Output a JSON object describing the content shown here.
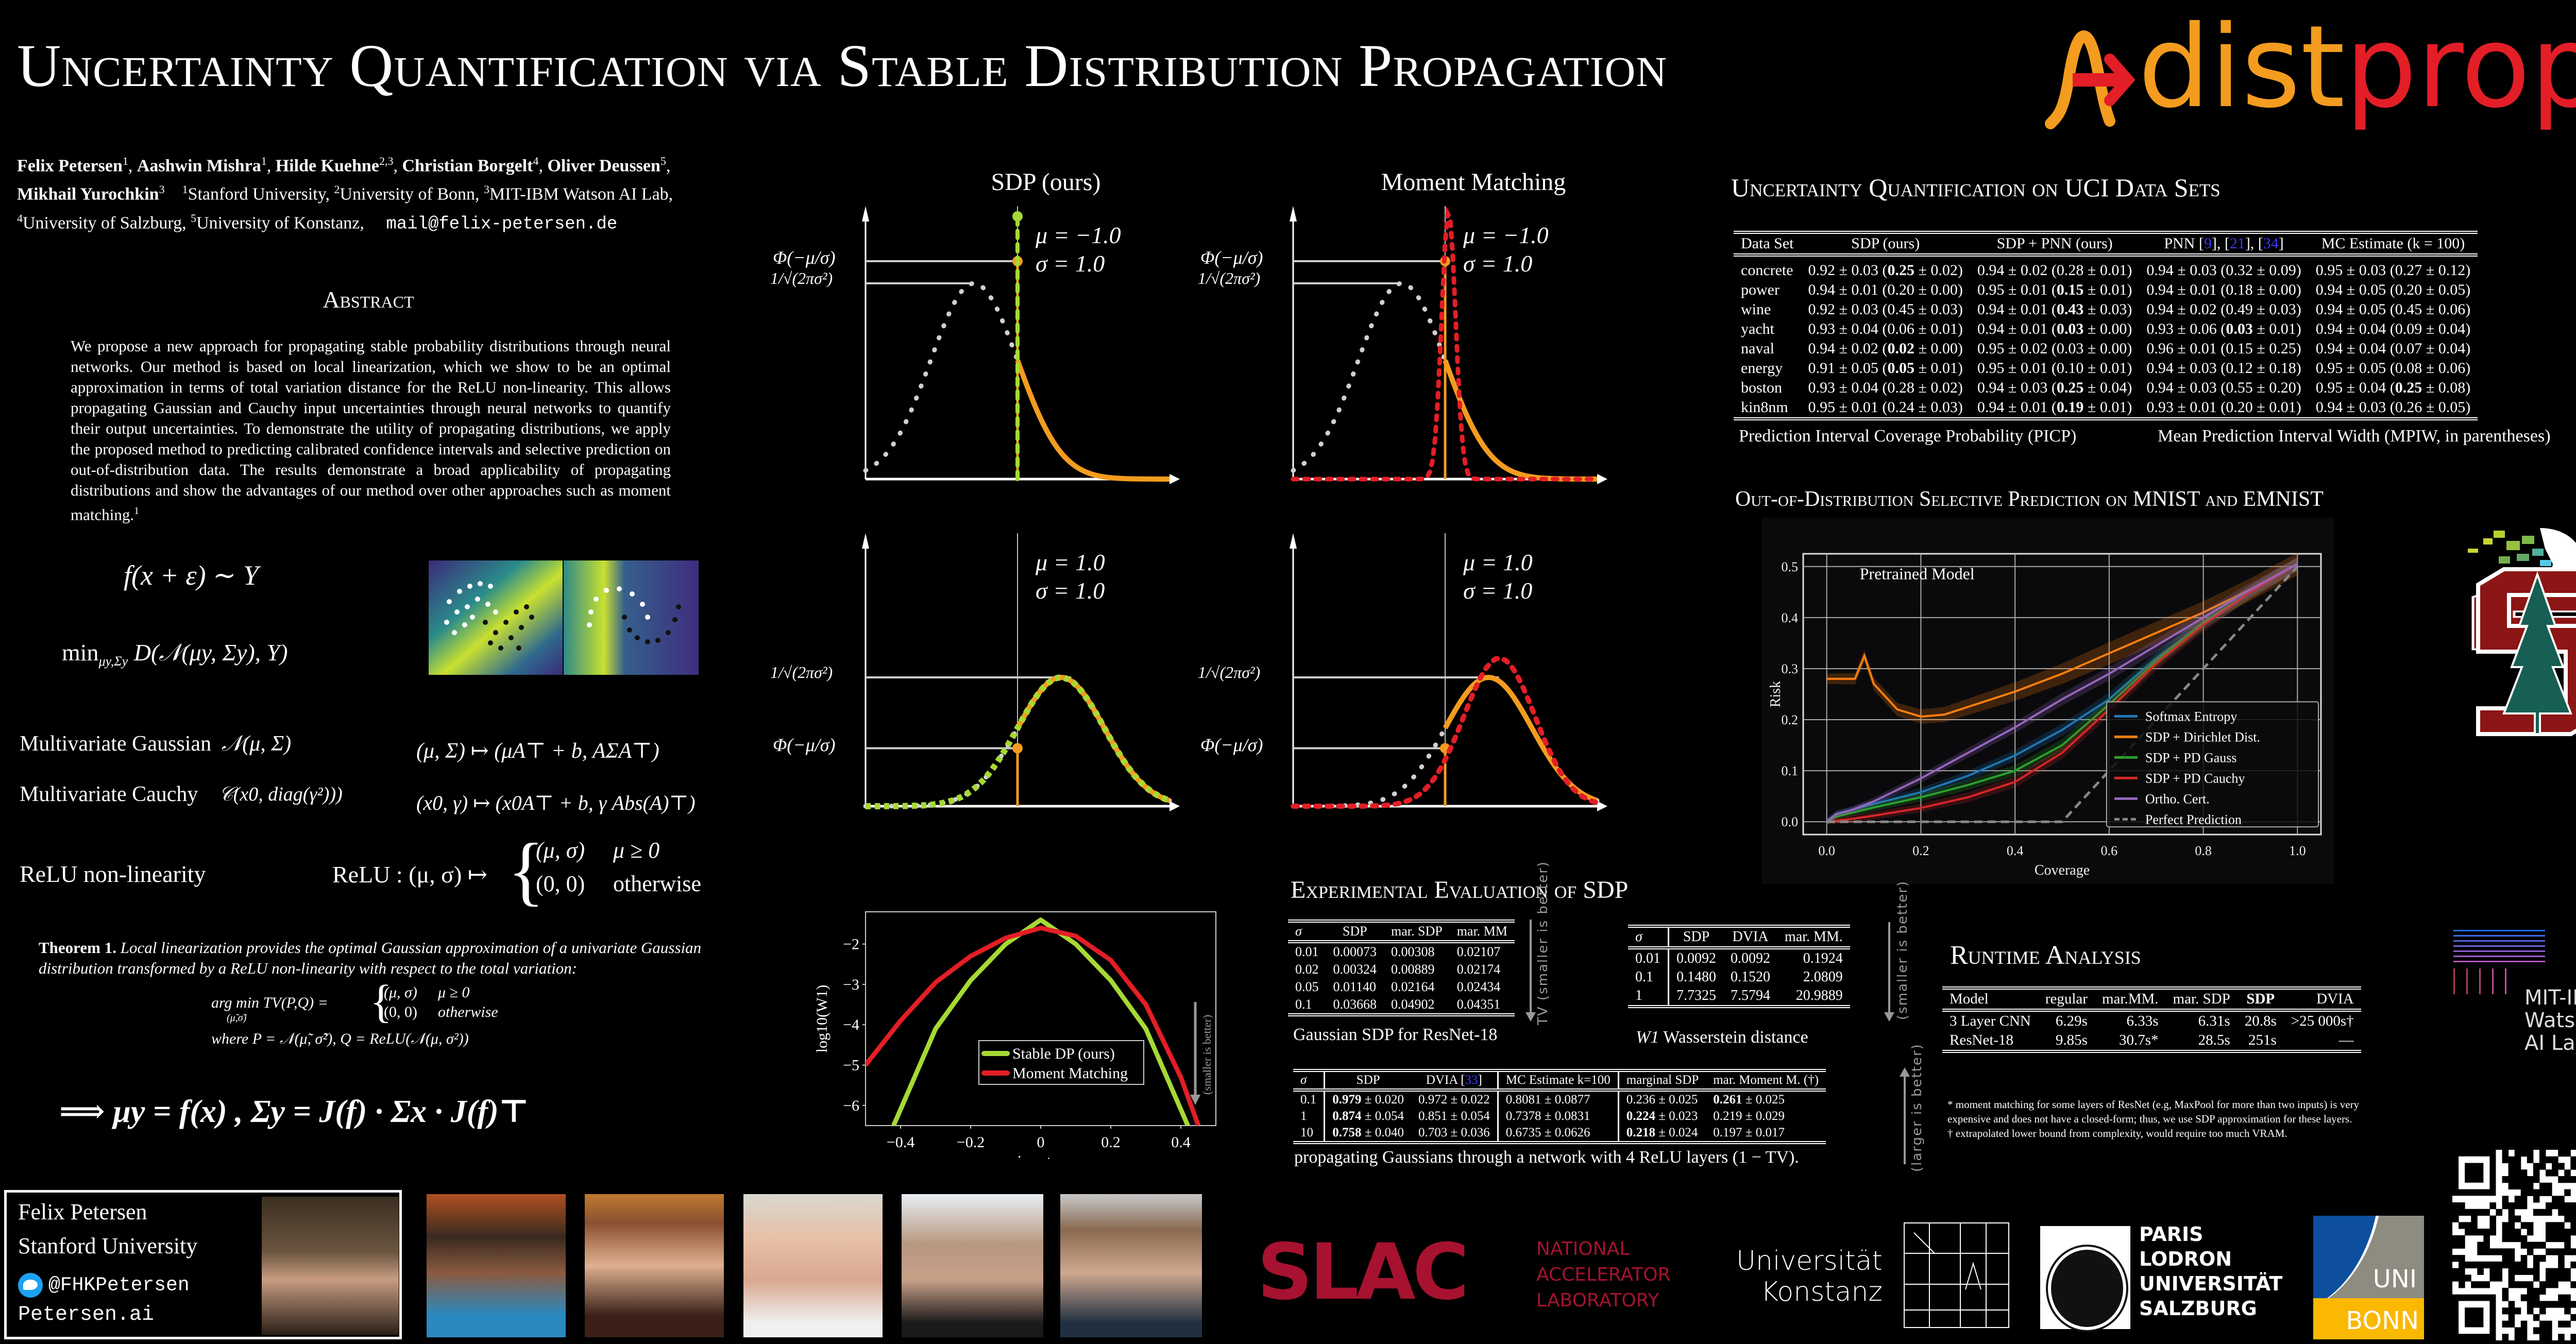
{
  "header": {
    "title": "Uncertainty Quantification via Stable Distribution Propagation",
    "logo_text_a": "dist",
    "logo_text_b": "prop",
    "colors": {
      "orange": "#f39c1f",
      "red": "#e31e26"
    }
  },
  "authors": {
    "line1": [
      {
        "name": "Felix Petersen",
        "sup": "1"
      },
      {
        "name": "Aashwin Mishra",
        "sup": "1"
      },
      {
        "name": "Hilde Kuehne",
        "sup": "2,3"
      },
      {
        "name": "Christian Borgelt",
        "sup": "4"
      },
      {
        "name": "Oliver Deussen",
        "sup": "5"
      }
    ],
    "last_author": {
      "name": "Mikhail Yurochkin",
      "sup": "3"
    },
    "affiliations": [
      {
        "sup": "1",
        "name": "Stanford University,"
      },
      {
        "sup": "2",
        "name": "University of Bonn,"
      },
      {
        "sup": "3",
        "name": "MIT-IBM Watson AI Lab,"
      },
      {
        "sup": "4",
        "name": "University of Salzburg,"
      },
      {
        "sup": "5",
        "name": "University of Konstanz,"
      }
    ],
    "email": "mail@felix-petersen.de"
  },
  "abstract": {
    "heading": "Abstract",
    "text": "We propose a new approach for propagating stable probability distributions through neural networks. Our method is based on local linearization, which we show to be an optimal approximation in terms of total variation distance for the ReLU non-linearity. This allows propagating Gaussian and Cauchy input uncertainties through neural networks to quantify their output uncertainties. To demonstrate the utility of propagating distributions, we apply the proposed method to predicting calibrated confidence intervals and selective prediction on out-of-distribution data. The results demonstrate a broad applicability of propagating distributions and show the advantages of our method over other approaches such as moment matching.",
    "footnote_mark": "1"
  },
  "formulas": {
    "eq1": "f(x + ε) ∼ Y",
    "eq2_min": "min",
    "eq2_sub": "μy,Σy",
    "eq2_rest": "D(𝒩(μy, Σy), Y)",
    "gaussian_label": "Multivariate Gaussian",
    "gaussian_math": "𝒩(μ, Σ)",
    "gaussian_map": "(μ, Σ) ↦ (μA⊤ + b, AΣA⊤)",
    "cauchy_label": "Multivariate Cauchy",
    "cauchy_math": "𝒞(x0, diag(γ²)))",
    "cauchy_map": "(x0, γ) ↦ (x0A⊤ + b, γ Abs(A)⊤)",
    "relu_label": "ReLU non-linearity",
    "relu_map": "ReLU : (μ, σ) ↦",
    "relu_case1": "(μ, σ)",
    "relu_cond1": "μ ≥ 0",
    "relu_case2": "(0, 0)",
    "relu_cond2": "otherwise"
  },
  "theorem": {
    "label": "Theorem 1.",
    "text": "Local linearization provides the optimal Gaussian approximation of a univariate Gaussian distribution transformed by a ReLU non-linearity with respect to the total variation:",
    "argmin": "arg min TV(P,Q) =",
    "argmin_sub": "(μ̃,σ̃)",
    "case1": "(μ, σ)",
    "cond1": "μ ≥ 0",
    "case2": "(0, 0)",
    "cond2": "otherwise",
    "where": "where  P = 𝒩(μ̃, σ̃²),  Q = ReLU(𝒩(μ, σ²))",
    "implication": "⟹  μy = f(x) ,      Σy = J(f) · Σx · J(f)⊤"
  },
  "contact": {
    "name": "Felix Petersen",
    "affiliation": "Stanford University",
    "twitter": "@FHKPetersen",
    "website": "Petersen.ai"
  },
  "illustration": {
    "col_titles": [
      "SDP (ours)",
      "Moment Matching"
    ],
    "phi_label": "Φ(−μ/σ)",
    "peak_label": "1/√(2πσ²)",
    "panels": [
      {
        "mu": "μ = −1.0",
        "sigma": "σ =   1.0"
      },
      {
        "mu": "μ = −1.0",
        "sigma": "σ =   1.0"
      },
      {
        "mu": "μ = 1.0",
        "sigma": "σ = 1.0"
      },
      {
        "mu": "μ = 1.0",
        "sigma": "σ = 1.0"
      }
    ],
    "colors": {
      "input": "#d0d0d0",
      "relu_output": "#f39c1f",
      "sdp": "#a6d934",
      "mm": "#e31e26"
    }
  },
  "chart_data": [
    {
      "type": "line",
      "title": "",
      "xlabel": "input μ",
      "ylabel": "log10(W1)",
      "xlim": [
        -0.5,
        0.5
      ],
      "ylim": [
        -6.5,
        -1.2
      ],
      "xticks": [
        "−0.4",
        "−0.2",
        "0",
        "0.2",
        "0.4"
      ],
      "xtick_values": [
        -0.4,
        -0.2,
        0,
        0.2,
        0.4
      ],
      "yticks": [
        "−2",
        "−3",
        "−4",
        "−5",
        "−6"
      ],
      "ytick_values": [
        -2,
        -3,
        -4,
        -5,
        -6
      ],
      "annotation": "(smaller is better)",
      "legend_position": "center",
      "series": [
        {
          "name": "Stable DP (ours)",
          "color": "#a6d934",
          "x": [
            -0.42,
            -0.3,
            -0.2,
            -0.1,
            0.0,
            0.1,
            0.2,
            0.3,
            0.42
          ],
          "y": [
            -6.5,
            -4.1,
            -2.9,
            -2.0,
            -1.4,
            -2.0,
            -2.9,
            -4.1,
            -6.5
          ]
        },
        {
          "name": "Moment Matching",
          "color": "#e31e26",
          "x": [
            -0.5,
            -0.4,
            -0.3,
            -0.2,
            -0.1,
            0.0,
            0.1,
            0.2,
            0.3,
            0.4,
            0.45
          ],
          "y": [
            -5.0,
            -3.9,
            -2.95,
            -2.3,
            -1.85,
            -1.6,
            -1.8,
            -2.4,
            -3.5,
            -5.3,
            -6.5
          ]
        }
      ]
    },
    {
      "type": "line",
      "title": "Pretrained Model",
      "xlabel": "Coverage",
      "ylabel": "Risk",
      "xlim": [
        -0.05,
        1.05
      ],
      "ylim": [
        -0.025,
        0.525
      ],
      "xticks": [
        "0.0",
        "0.2",
        "0.4",
        "0.6",
        "0.8",
        "1.0"
      ],
      "xtick_values": [
        0,
        0.2,
        0.4,
        0.6,
        0.8,
        1.0
      ],
      "yticks": [
        "0.0",
        "0.1",
        "0.2",
        "0.3",
        "0.4",
        "0.5"
      ],
      "ytick_values": [
        0,
        0.1,
        0.2,
        0.3,
        0.4,
        0.5
      ],
      "grid": true,
      "legend_position": "lower-right",
      "series": [
        {
          "name": "Softmax Entropy",
          "color": "#1f77b4",
          "dash": false,
          "x": [
            0,
            0.02,
            0.1,
            0.2,
            0.3,
            0.4,
            0.5,
            0.6,
            0.7,
            0.8,
            0.9,
            1.0
          ],
          "y": [
            0.0,
            0.015,
            0.035,
            0.058,
            0.09,
            0.13,
            0.18,
            0.24,
            0.32,
            0.39,
            0.45,
            0.505
          ]
        },
        {
          "name": "SDP + Dirichlet Dist.",
          "color": "#ff7f0e",
          "dash": false,
          "x": [
            0,
            0.06,
            0.08,
            0.1,
            0.15,
            0.2,
            0.25,
            0.3,
            0.4,
            0.5,
            0.6,
            0.7,
            0.8,
            0.9,
            1.0
          ],
          "y": [
            0.28,
            0.28,
            0.325,
            0.27,
            0.22,
            0.206,
            0.21,
            0.225,
            0.255,
            0.29,
            0.33,
            0.37,
            0.41,
            0.455,
            0.505
          ]
        },
        {
          "name": "SDP + PD Gauss",
          "color": "#2ca02c",
          "dash": false,
          "x": [
            0,
            0.02,
            0.1,
            0.2,
            0.3,
            0.4,
            0.5,
            0.6,
            0.7,
            0.8,
            0.9,
            1.0
          ],
          "y": [
            0.0,
            0.01,
            0.028,
            0.048,
            0.072,
            0.1,
            0.15,
            0.23,
            0.315,
            0.39,
            0.45,
            0.505
          ]
        },
        {
          "name": "SDP + PD Cauchy",
          "color": "#d62728",
          "dash": false,
          "x": [
            0,
            0.05,
            0.1,
            0.2,
            0.3,
            0.4,
            0.5,
            0.6,
            0.7,
            0.8,
            0.9,
            1.0
          ],
          "y": [
            0.0,
            0.005,
            0.012,
            0.027,
            0.048,
            0.078,
            0.135,
            0.22,
            0.31,
            0.385,
            0.45,
            0.505
          ]
        },
        {
          "name": "Ortho. Cert.",
          "color": "#9467bd",
          "dash": false,
          "x": [
            0,
            0.02,
            0.05,
            0.1,
            0.2,
            0.3,
            0.4,
            0.5,
            0.6,
            0.7,
            0.8,
            0.9,
            1.0
          ],
          "y": [
            0.0,
            0.015,
            0.022,
            0.04,
            0.085,
            0.135,
            0.185,
            0.24,
            0.29,
            0.345,
            0.4,
            0.455,
            0.505
          ]
        },
        {
          "name": "Perfect Prediction",
          "color": "#888888",
          "dash": true,
          "x": [
            0,
            0.5,
            1.0
          ],
          "y": [
            0.0,
            0.0,
            0.5
          ]
        }
      ]
    }
  ],
  "uci": {
    "heading": "Uncertainty Quantification on UCI Data Sets",
    "columns": [
      "Data Set",
      "SDP (ours)",
      "SDP + PNN (ours)",
      "PNN [9], [21], [34]",
      "MC Estimate (k = 100)"
    ],
    "pnn_cites": [
      "9",
      "21",
      "34"
    ],
    "rows": [
      {
        "name": "concrete",
        "cells": [
          [
            "0.92 ± 0.03 (",
            "0.25",
            " ± 0.02)"
          ],
          [
            "0.94 ± 0.02 (0.28 ± 0.01)"
          ],
          [
            "0.94 ± 0.03 (0.32 ± 0.09)"
          ],
          [
            "0.95 ± 0.03 (0.27 ± 0.12)"
          ]
        ]
      },
      {
        "name": "power",
        "cells": [
          [
            "0.94 ± 0.01 (0.20 ± 0.00)"
          ],
          [
            "0.95 ± 0.01 (",
            "0.15",
            " ± 0.01)"
          ],
          [
            "0.94 ± 0.01 (0.18 ± 0.00)"
          ],
          [
            "0.94 ± 0.05 (0.20 ± 0.05)"
          ]
        ]
      },
      {
        "name": "wine",
        "cells": [
          [
            "0.92 ± 0.03 (0.45 ± 0.03)"
          ],
          [
            "0.94 ± 0.01 (",
            "0.43",
            " ± 0.03)"
          ],
          [
            "0.94 ± 0.02 (0.49 ± 0.03)"
          ],
          [
            "0.94 ± 0.05 (0.45 ± 0.06)"
          ]
        ]
      },
      {
        "name": "yacht",
        "cells": [
          [
            "0.93 ± 0.04 (0.06 ± 0.01)"
          ],
          [
            "0.94 ± 0.01 (",
            "0.03",
            " ± 0.00)"
          ],
          [
            "0.93 ± 0.06 (",
            "0.03",
            " ± 0.01)"
          ],
          [
            "0.94 ± 0.04 (0.09 ± 0.04)"
          ]
        ]
      },
      {
        "name": "naval",
        "cells": [
          [
            "0.94 ± 0.02 (",
            "0.02",
            " ± 0.00)"
          ],
          [
            "0.95 ± 0.02 (0.03 ± 0.00)"
          ],
          [
            "0.96 ± 0.01 (0.15 ± 0.25)"
          ],
          [
            "0.94 ± 0.04 (0.07 ± 0.04)"
          ]
        ]
      },
      {
        "name": "energy",
        "cells": [
          [
            "0.91 ± 0.05 (",
            "0.05",
            " ± 0.01)"
          ],
          [
            "0.95 ± 0.01 (0.10 ± 0.01)"
          ],
          [
            "0.94 ± 0.03 (0.12 ± 0.18)"
          ],
          [
            "0.95 ± 0.05 (0.08 ± 0.06)"
          ]
        ]
      },
      {
        "name": "boston",
        "cells": [
          [
            "0.93 ± 0.04 (0.28 ± 0.02)"
          ],
          [
            "0.94 ± 0.03 (",
            "0.25",
            " ± 0.04)"
          ],
          [
            "0.94 ± 0.03 (0.55 ± 0.20)"
          ],
          [
            "0.95 ± 0.04 (",
            "0.25",
            " ± 0.08)"
          ]
        ]
      },
      {
        "name": "kin8nm",
        "cells": [
          [
            "0.95 ± 0.01 (0.24 ± 0.03)"
          ],
          [
            "0.94 ± 0.01 (",
            "0.19",
            " ± 0.01)"
          ],
          [
            "0.93 ± 0.01 (0.20 ± 0.01)"
          ],
          [
            "0.94 ± 0.03 (0.26 ± 0.05)"
          ]
        ]
      }
    ],
    "caption_left": "Prediction Interval Coverage Probability (PICP)",
    "caption_right": "Mean Prediction Interval Width (MPIW, in parentheses)"
  },
  "ood": {
    "heading": "Out-of-Distribution Selective Prediction on MNIST and EMNIST"
  },
  "experimental": {
    "heading": "Experimental Evaluation of SDP",
    "table1": {
      "columns": [
        "σ",
        "SDP",
        "mar. SDP",
        "mar. MM"
      ],
      "rows": [
        [
          "0.01",
          "0.00073",
          "0.00308",
          "0.02107"
        ],
        [
          "0.02",
          "0.00324",
          "0.00889",
          "0.02174"
        ],
        [
          "0.05",
          "0.01140",
          "0.02164",
          "0.02434"
        ],
        [
          "0.1",
          "0.03668",
          "0.04902",
          "0.04351"
        ]
      ],
      "bold_col": 1,
      "side_note": "TV (smaller is better)",
      "caption": "Gaussian SDP for ResNet-18"
    },
    "table2": {
      "columns": [
        "σ",
        "SDP",
        "DVIA",
        "mar. MM."
      ],
      "rows": [
        [
          "0.01",
          "0.0092",
          "0.0092",
          "0.1924"
        ],
        [
          "0.1",
          "0.1480",
          "0.1520",
          "2.0809"
        ],
        [
          "1",
          "7.7325",
          "7.5794",
          "20.9889"
        ]
      ],
      "bold": [
        [
          0,
          1
        ],
        [
          0,
          2
        ],
        [
          1,
          1
        ],
        [
          2,
          2
        ]
      ],
      "side_note": "(smaller is better)",
      "caption_math": "W1",
      "caption": "Wasserstein distance"
    },
    "table3": {
      "columns": [
        "σ",
        "SDP",
        "DVIA [33]",
        "MC Estimate k=100",
        "marginal SDP",
        "mar. Moment M. (†)"
      ],
      "rows": [
        [
          "0.1",
          "0.979",
          "± 0.020",
          "0.972 ± 0.022",
          "0.8081 ± 0.0877",
          "0.236 ± 0.025",
          "0.261",
          "± 0.025"
        ],
        [
          "1",
          "0.874",
          "± 0.054",
          "0.851 ± 0.054",
          "0.7378 ± 0.0831",
          "0.224 ± 0.023",
          "0.219 ± 0.029",
          ""
        ],
        [
          "10",
          "0.758",
          "± 0.040",
          "0.703 ± 0.036",
          "0.6735 ± 0.0626",
          "0.218 ± 0.024",
          "0.197 ± 0.017",
          ""
        ]
      ],
      "side_note": "(larger is better)",
      "caption": "propagating Gaussians through a network with 4 ReLU layers  (1 − TV)."
    }
  },
  "runtime": {
    "heading": "Runtime Analysis",
    "columns": [
      "Model",
      "regular",
      "mar.MM.",
      "mar. SDP",
      "SDP",
      "DVIA"
    ],
    "rows": [
      [
        "3 Layer CNN",
        "6.29s",
        "6.33s",
        "6.31s",
        "20.8s",
        ">25 000s†"
      ],
      [
        "ResNet-18",
        "9.85s",
        "30.7s*",
        "28.5s",
        "251s",
        "—"
      ]
    ],
    "footnote1": "* moment matching for some layers of ResNet (e.g, MaxPool for more than two inputs) is very expensive and does not have a closed-form; thus, we use SDP approximation for these layers.",
    "footnote2": "† extrapolated lower bound from complexity, would require too much VRAM."
  },
  "logos": {
    "mit_ibm": [
      "MIT-IBM",
      "Watson",
      "AI Lab"
    ],
    "slac": "SLAC",
    "slac_lines": [
      "NATIONAL",
      "ACCELERATOR",
      "LABORATORY"
    ],
    "konstanz": [
      "Universität",
      "Konstanz"
    ],
    "salzburg": [
      "PARIS",
      "LODRON",
      "UNIVERSITÄT",
      "SALZBURG"
    ],
    "bonn": [
      "UNI",
      "BONN"
    ]
  }
}
